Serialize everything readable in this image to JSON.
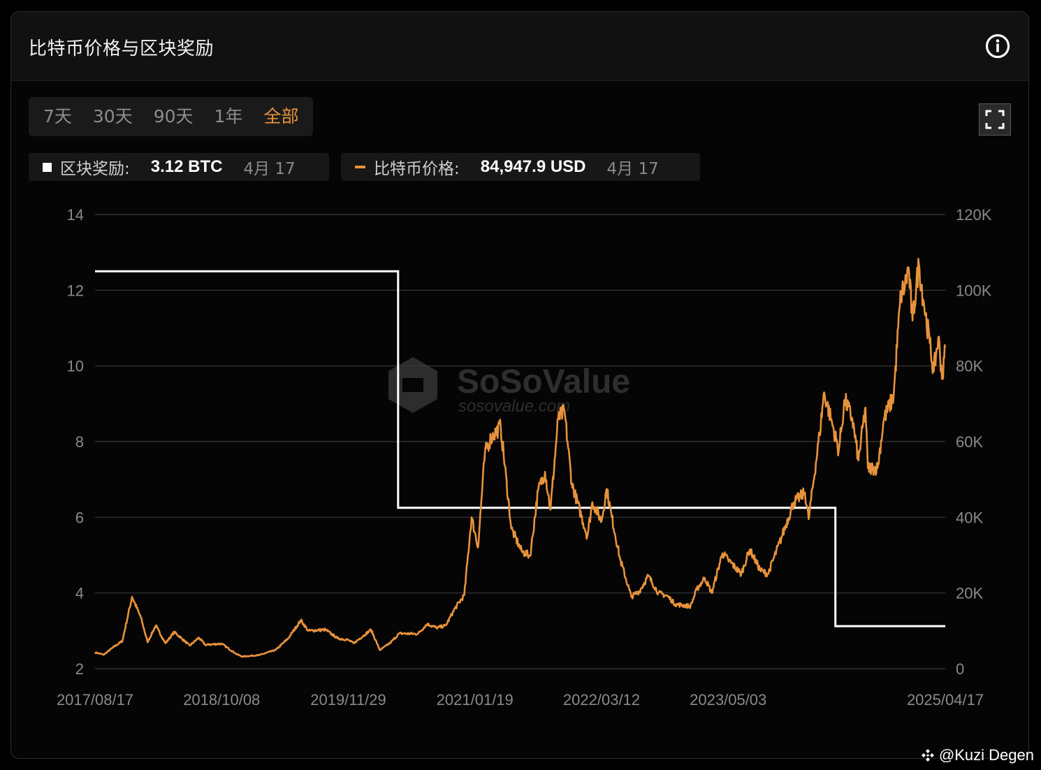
{
  "header": {
    "title": "比特币价格与区块奖励"
  },
  "range_tabs": [
    {
      "label": "7天",
      "active": false
    },
    {
      "label": "30天",
      "active": false
    },
    {
      "label": "90天",
      "active": false
    },
    {
      "label": "1年",
      "active": false
    },
    {
      "label": "全部",
      "active": true
    }
  ],
  "legend": {
    "reward": {
      "label": "区块奖励:",
      "value": "3.12 BTC",
      "date": "4月 17",
      "color": "#ffffff"
    },
    "price": {
      "label": "比特币价格:",
      "value": "84,947.9 USD",
      "date": "4月 17",
      "color": "#e8923c"
    }
  },
  "watermark": {
    "brand": "SoSoValue",
    "site": "sosovalue.com"
  },
  "footer": {
    "handle": "@Kuzi Degen"
  },
  "colors": {
    "accent": "#e8923c",
    "reward_line": "#ffffff",
    "grid": "#3a3a3a",
    "tick": "#8a8a8a"
  },
  "chart_data": {
    "type": "line",
    "title": "比特币价格与区块奖励",
    "x_type": "date",
    "x_range": [
      "2017-08-17",
      "2025-04-17"
    ],
    "x_tick_labels": [
      "2017/08/17",
      "2018/10/08",
      "2019/11/29",
      "2021/01/19",
      "2022/03/12",
      "2023/05/03",
      "2025/04/17"
    ],
    "y_left": {
      "range": [
        2,
        14
      ],
      "tick_labels": [
        "2",
        "4",
        "6",
        "8",
        "10",
        "12",
        "14"
      ]
    },
    "y_right": {
      "range": [
        0,
        120000
      ],
      "tick_labels": [
        "0",
        "20K",
        "40K",
        "60K",
        "80K",
        "100K",
        "120K"
      ]
    },
    "grid": true,
    "series": [
      {
        "name": "区块奖励",
        "axis": "left",
        "color": "#ffffff",
        "step": true,
        "points": [
          [
            "2017-08-17",
            12.5
          ],
          [
            "2020-05-11",
            12.5
          ],
          [
            "2020-05-11",
            6.25
          ],
          [
            "2024-04-20",
            6.25
          ],
          [
            "2024-04-20",
            3.125
          ],
          [
            "2025-04-17",
            3.125
          ]
        ]
      },
      {
        "name": "比特币价格",
        "axis": "right",
        "color": "#e8923c",
        "points": [
          [
            "2017-08-17",
            4300
          ],
          [
            "2017-09-15",
            3700
          ],
          [
            "2017-10-15",
            5600
          ],
          [
            "2017-11-15",
            7300
          ],
          [
            "2017-12-17",
            19000
          ],
          [
            "2018-01-15",
            13500
          ],
          [
            "2018-02-06",
            7000
          ],
          [
            "2018-03-05",
            11400
          ],
          [
            "2018-04-06",
            6700
          ],
          [
            "2018-05-05",
            9700
          ],
          [
            "2018-06-25",
            6100
          ],
          [
            "2018-07-25",
            8200
          ],
          [
            "2018-08-15",
            6300
          ],
          [
            "2018-10-08",
            6600
          ],
          [
            "2018-11-25",
            3900
          ],
          [
            "2018-12-15",
            3200
          ],
          [
            "2019-02-10",
            3600
          ],
          [
            "2019-04-05",
            5000
          ],
          [
            "2019-05-15",
            8000
          ],
          [
            "2019-06-26",
            12800
          ],
          [
            "2019-07-20",
            10000
          ],
          [
            "2019-09-15",
            10300
          ],
          [
            "2019-10-25",
            8000
          ],
          [
            "2019-11-29",
            7600
          ],
          [
            "2019-12-17",
            6700
          ],
          [
            "2020-02-12",
            10300
          ],
          [
            "2020-03-12",
            4900
          ],
          [
            "2020-04-15",
            6800
          ],
          [
            "2020-05-15",
            9300
          ],
          [
            "2020-07-15",
            9200
          ],
          [
            "2020-08-15",
            11800
          ],
          [
            "2020-09-15",
            10800
          ],
          [
            "2020-10-15",
            11400
          ],
          [
            "2020-11-15",
            16000
          ],
          [
            "2020-12-15",
            19400
          ],
          [
            "2021-01-08",
            40000
          ],
          [
            "2021-01-19",
            36000
          ],
          [
            "2021-01-29",
            32000
          ],
          [
            "2021-02-21",
            57000
          ],
          [
            "2021-03-13",
            61000
          ],
          [
            "2021-04-14",
            64000
          ],
          [
            "2021-05-19",
            37000
          ],
          [
            "2021-06-22",
            31000
          ],
          [
            "2021-07-20",
            29800
          ],
          [
            "2021-08-15",
            47000
          ],
          [
            "2021-09-07",
            52000
          ],
          [
            "2021-09-25",
            42000
          ],
          [
            "2021-10-20",
            66000
          ],
          [
            "2021-11-10",
            68000
          ],
          [
            "2021-12-04",
            49000
          ],
          [
            "2022-01-24",
            35000
          ],
          [
            "2022-02-10",
            44000
          ],
          [
            "2022-03-12",
            39000
          ],
          [
            "2022-03-29",
            47500
          ],
          [
            "2022-04-15",
            40000
          ],
          [
            "2022-05-12",
            29000
          ],
          [
            "2022-06-18",
            19000
          ],
          [
            "2022-07-15",
            20500
          ],
          [
            "2022-08-13",
            24500
          ],
          [
            "2022-09-15",
            20000
          ],
          [
            "2022-10-15",
            19200
          ],
          [
            "2022-11-10",
            17000
          ],
          [
            "2022-12-30",
            16500
          ],
          [
            "2023-01-20",
            21000
          ],
          [
            "2023-02-15",
            24000
          ],
          [
            "2023-03-10",
            20000
          ],
          [
            "2023-04-14",
            30500
          ],
          [
            "2023-05-03",
            28800
          ],
          [
            "2023-06-15",
            25000
          ],
          [
            "2023-07-13",
            31500
          ],
          [
            "2023-08-17",
            26000
          ],
          [
            "2023-09-11",
            25000
          ],
          [
            "2023-10-25",
            34500
          ],
          [
            "2023-12-05",
            44000
          ],
          [
            "2024-01-11",
            46500
          ],
          [
            "2024-01-23",
            39500
          ],
          [
            "2024-02-28",
            62000
          ],
          [
            "2024-03-14",
            73000
          ],
          [
            "2024-04-15",
            63000
          ],
          [
            "2024-05-01",
            57500
          ],
          [
            "2024-05-21",
            71000
          ],
          [
            "2024-06-15",
            66000
          ],
          [
            "2024-07-05",
            55000
          ],
          [
            "2024-07-28",
            69000
          ],
          [
            "2024-08-05",
            53000
          ],
          [
            "2024-09-06",
            53000
          ],
          [
            "2024-09-27",
            66000
          ],
          [
            "2024-10-29",
            72000
          ],
          [
            "2024-11-13",
            90000
          ],
          [
            "2024-11-22",
            99000
          ],
          [
            "2024-12-05",
            101000
          ],
          [
            "2024-12-17",
            106000
          ],
          [
            "2024-12-30",
            92000
          ],
          [
            "2025-01-20",
            107000
          ],
          [
            "2025-02-05",
            97000
          ],
          [
            "2025-02-25",
            86000
          ],
          [
            "2025-03-10",
            78500
          ],
          [
            "2025-03-25",
            87500
          ],
          [
            "2025-04-08",
            76500
          ],
          [
            "2025-04-17",
            84947.9
          ]
        ]
      }
    ]
  }
}
